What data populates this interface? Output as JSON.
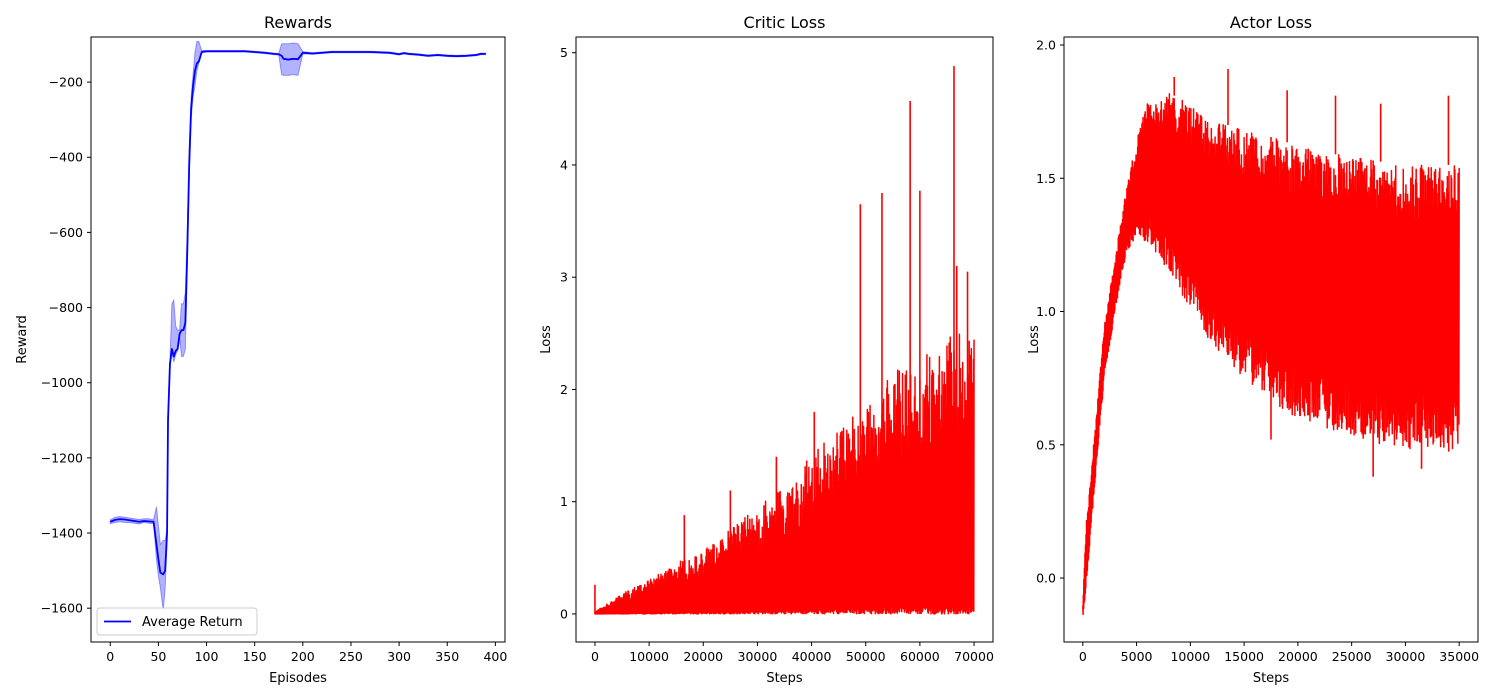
{
  "chart_data": [
    {
      "type": "line",
      "title": "Rewards",
      "xlabel": "Episodes",
      "ylabel": "Reward",
      "xlim": [
        -20,
        410
      ],
      "ylim": [
        -1690,
        -80
      ],
      "xticks": [
        0,
        50,
        100,
        150,
        200,
        250,
        300,
        350,
        400
      ],
      "yticks": [
        -1600,
        -1400,
        -1200,
        -1000,
        -800,
        -600,
        -400,
        -200
      ],
      "legend": "lower-left",
      "color": "#0000ff",
      "band_color": "#0000ff",
      "series": [
        {
          "name": "Average Return",
          "x": [
            0,
            5,
            10,
            15,
            20,
            25,
            30,
            35,
            40,
            45,
            48,
            50,
            52,
            55,
            57,
            59,
            60,
            62,
            64,
            66,
            68,
            70,
            72,
            74,
            76,
            78,
            80,
            82,
            84,
            86,
            88,
            90,
            92,
            95,
            100,
            110,
            120,
            130,
            140,
            150,
            160,
            170,
            175,
            178,
            180,
            185,
            190,
            195,
            200,
            210,
            220,
            230,
            240,
            250,
            260,
            270,
            280,
            290,
            300,
            305,
            310,
            320,
            330,
            340,
            350,
            360,
            370,
            380,
            385,
            390
          ],
          "y": [
            -1370,
            -1365,
            -1363,
            -1364,
            -1366,
            -1368,
            -1370,
            -1368,
            -1369,
            -1370,
            -1430,
            -1470,
            -1505,
            -1510,
            -1500,
            -1400,
            -1100,
            -950,
            -910,
            -930,
            -915,
            -910,
            -870,
            -860,
            -860,
            -840,
            -650,
            -420,
            -270,
            -210,
            -170,
            -150,
            -145,
            -120,
            -118,
            -118,
            -118,
            -118,
            -118,
            -120,
            -122,
            -125,
            -126,
            -130,
            -138,
            -140,
            -138,
            -139,
            -122,
            -124,
            -122,
            -120,
            -120,
            -120,
            -120,
            -120,
            -121,
            -122,
            -126,
            -123,
            -125,
            -127,
            -130,
            -128,
            -130,
            -131,
            -130,
            -128,
            -125,
            -125
          ],
          "lower": [
            -1375,
            -1372,
            -1370,
            -1372,
            -1372,
            -1374,
            -1376,
            -1372,
            -1374,
            -1375,
            -1470,
            -1515,
            -1545,
            -1605,
            -1550,
            -1420,
            -1110,
            -960,
            -920,
            -945,
            -925,
            -915,
            -880,
            -930,
            -930,
            -910,
            -680,
            -450,
            -300,
            -240,
            -210,
            -170,
            -150,
            -122,
            -120,
            -120,
            -120,
            -120,
            -120,
            -122,
            -124,
            -127,
            -128,
            -180,
            -182,
            -182,
            -180,
            -182,
            -125,
            -126,
            -124,
            -122,
            -122,
            -122,
            -122,
            -122,
            -123,
            -124,
            -128,
            -125,
            -127,
            -129,
            -132,
            -130,
            -132,
            -133,
            -132,
            -130,
            -127,
            -127
          ],
          "upper": [
            -1365,
            -1358,
            -1356,
            -1358,
            -1360,
            -1362,
            -1364,
            -1362,
            -1362,
            -1365,
            -1330,
            -1380,
            -1430,
            -1420,
            -1420,
            -1390,
            -1090,
            -940,
            -790,
            -780,
            -850,
            -860,
            -860,
            -790,
            -790,
            -760,
            -600,
            -380,
            -240,
            -180,
            -120,
            -92,
            -92,
            -116,
            -116,
            -116,
            -116,
            -116,
            -116,
            -118,
            -120,
            -123,
            -124,
            -98,
            -98,
            -98,
            -96,
            -98,
            -119,
            -122,
            -120,
            -118,
            -118,
            -118,
            -118,
            -118,
            -119,
            -120,
            -124,
            -121,
            -123,
            -125,
            -128,
            -126,
            -128,
            -129,
            -128,
            -126,
            -123,
            -123
          ]
        }
      ]
    },
    {
      "type": "line",
      "title": "Critic Loss",
      "xlabel": "Steps",
      "ylabel": "Loss",
      "xlim": [
        -3500,
        73500
      ],
      "ylim": [
        -0.25,
        5.14
      ],
      "xticks": [
        0,
        10000,
        20000,
        30000,
        40000,
        50000,
        60000,
        70000
      ],
      "yticks": [
        0,
        1,
        2,
        3,
        4,
        5
      ],
      "color": "#ff0000",
      "envelope": {
        "x": [
          0,
          1000,
          3000,
          5000,
          10000,
          15000,
          20000,
          25000,
          30000,
          35000,
          40000,
          45000,
          50000,
          55000,
          60000,
          65000,
          70000
        ],
        "upper": [
          0.02,
          0.05,
          0.12,
          0.18,
          0.3,
          0.45,
          0.58,
          0.75,
          0.95,
          1.15,
          1.45,
          1.65,
          1.85,
          2.15,
          2.3,
          2.45,
          2.6
        ],
        "lower": [
          0.0,
          0.0,
          0.0,
          0.0,
          0.0,
          0.0,
          0.0,
          0.0,
          0.0,
          0.0,
          0.0,
          0.0,
          0.0,
          0.0,
          0.0,
          0.0,
          0.0
        ]
      },
      "spikes": [
        {
          "x": 0,
          "y": 0.26
        },
        {
          "x": 16500,
          "y": 0.88
        },
        {
          "x": 25000,
          "y": 1.1
        },
        {
          "x": 33500,
          "y": 1.4
        },
        {
          "x": 40500,
          "y": 1.8
        },
        {
          "x": 49000,
          "y": 3.65
        },
        {
          "x": 53000,
          "y": 3.75
        },
        {
          "x": 58200,
          "y": 4.57
        },
        {
          "x": 60000,
          "y": 3.77
        },
        {
          "x": 66300,
          "y": 4.88
        },
        {
          "x": 66800,
          "y": 3.1
        },
        {
          "x": 68800,
          "y": 3.05
        }
      ]
    },
    {
      "type": "line",
      "title": "Actor Loss",
      "xlabel": "Steps",
      "ylabel": "Loss",
      "xlim": [
        -1750,
        36750
      ],
      "ylim": [
        -0.24,
        2.03
      ],
      "xticks": [
        0,
        5000,
        10000,
        15000,
        20000,
        25000,
        30000,
        35000
      ],
      "yticks": [
        0.0,
        0.5,
        1.0,
        1.5,
        2.0
      ],
      "color": "#ff0000",
      "envelope": {
        "x": [
          0,
          300,
          1000,
          2000,
          3000,
          4000,
          5000,
          6000,
          8000,
          10000,
          12000,
          15000,
          18000,
          20000,
          22000,
          25000,
          28000,
          30000,
          32000,
          34000,
          35000
        ],
        "upper": [
          -0.1,
          0.2,
          0.5,
          0.95,
          1.2,
          1.45,
          1.65,
          1.78,
          1.82,
          1.78,
          1.72,
          1.68,
          1.65,
          1.62,
          1.6,
          1.58,
          1.56,
          1.55,
          1.55,
          1.55,
          1.55
        ],
        "lower": [
          -0.15,
          -0.05,
          0.3,
          0.75,
          1.0,
          1.2,
          1.28,
          1.26,
          1.15,
          1.0,
          0.88,
          0.75,
          0.65,
          0.6,
          0.57,
          0.52,
          0.5,
          0.48,
          0.47,
          0.47,
          0.5
        ]
      },
      "spikes": [
        {
          "x": 13500,
          "y": 1.91
        },
        {
          "x": 8500,
          "y": 1.88
        },
        {
          "x": 19000,
          "y": 1.83
        },
        {
          "x": 27000,
          "y": 0.38
        },
        {
          "x": 34000,
          "y": 1.81
        },
        {
          "x": 27700,
          "y": 1.78
        },
        {
          "x": 23500,
          "y": 1.81
        },
        {
          "x": 31500,
          "y": 0.41
        },
        {
          "x": 17500,
          "y": 0.52
        }
      ]
    }
  ]
}
